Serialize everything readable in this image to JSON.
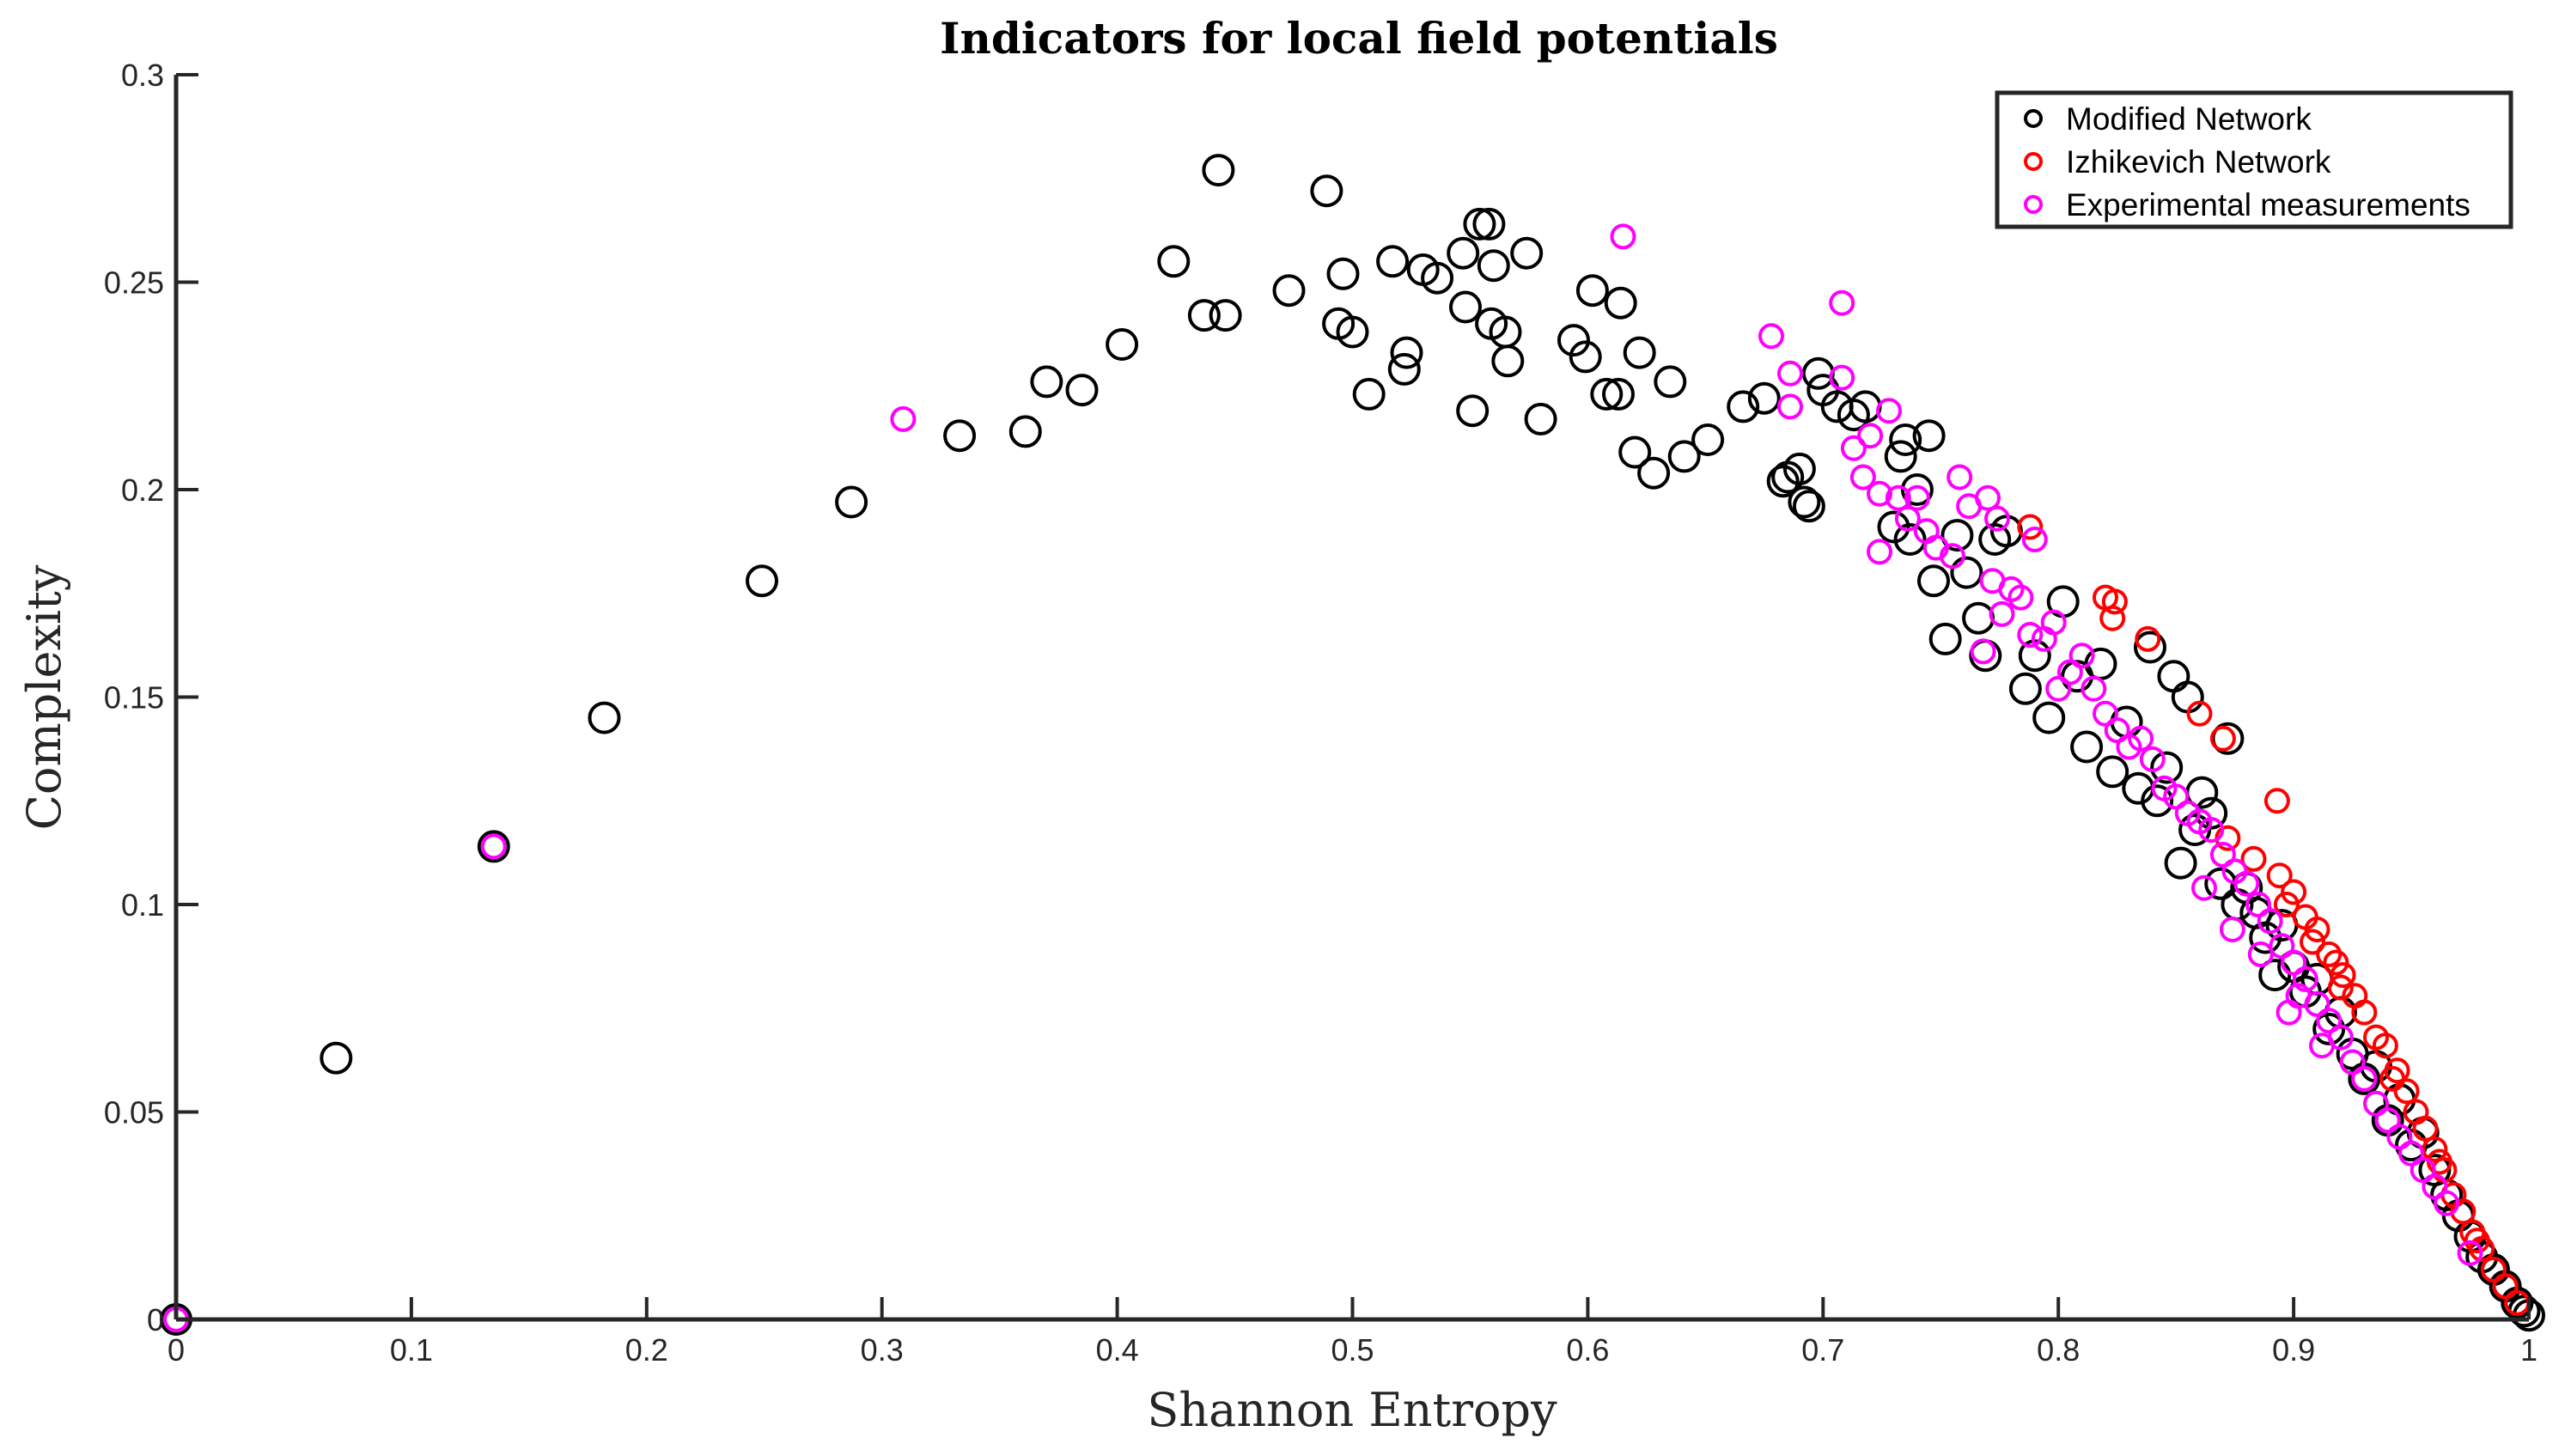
{
  "chart_data": {
    "type": "scatter",
    "title": "Indicators for local field potentials",
    "xlabel": "Shannon Entropy",
    "ylabel": "Complexity",
    "xlim": [
      0,
      1
    ],
    "ylim": [
      0,
      0.3
    ],
    "xticks": [
      "0",
      "0.1",
      "0.2",
      "0.3",
      "0.4",
      "0.5",
      "0.6",
      "0.7",
      "0.8",
      "0.9",
      "1"
    ],
    "yticks": [
      "0",
      "0.05",
      "0.1",
      "0.15",
      "0.2",
      "0.25",
      "0.3"
    ],
    "grid": false,
    "legend_position": "top-right",
    "series": [
      {
        "name": "Modified Network",
        "color": "#000000",
        "marker_size": "large",
        "points": [
          [
            0,
            0
          ],
          [
            0.068,
            0.063
          ],
          [
            0.135,
            0.114
          ],
          [
            0.182,
            0.145
          ],
          [
            0.249,
            0.178
          ],
          [
            0.287,
            0.197
          ],
          [
            0.333,
            0.213
          ],
          [
            0.361,
            0.214
          ],
          [
            0.37,
            0.226
          ],
          [
            0.385,
            0.224
          ],
          [
            0.402,
            0.235
          ],
          [
            0.424,
            0.255
          ],
          [
            0.437,
            0.242
          ],
          [
            0.443,
            0.277
          ],
          [
            0.446,
            0.242
          ],
          [
            0.473,
            0.248
          ],
          [
            0.489,
            0.272
          ],
          [
            0.494,
            0.24
          ],
          [
            0.496,
            0.252
          ],
          [
            0.5,
            0.238
          ],
          [
            0.507,
            0.223
          ],
          [
            0.517,
            0.255
          ],
          [
            0.522,
            0.229
          ],
          [
            0.523,
            0.233
          ],
          [
            0.53,
            0.253
          ],
          [
            0.536,
            0.251
          ],
          [
            0.547,
            0.257
          ],
          [
            0.548,
            0.244
          ],
          [
            0.551,
            0.219
          ],
          [
            0.554,
            0.264
          ],
          [
            0.558,
            0.264
          ],
          [
            0.559,
            0.24
          ],
          [
            0.56,
            0.254
          ],
          [
            0.565,
            0.238
          ],
          [
            0.566,
            0.231
          ],
          [
            0.574,
            0.257
          ],
          [
            0.58,
            0.217
          ],
          [
            0.594,
            0.236
          ],
          [
            0.599,
            0.232
          ],
          [
            0.602,
            0.248
          ],
          [
            0.608,
            0.223
          ],
          [
            0.613,
            0.223
          ],
          [
            0.614,
            0.245
          ],
          [
            0.62,
            0.209
          ],
          [
            0.622,
            0.233
          ],
          [
            0.628,
            0.204
          ],
          [
            0.635,
            0.226
          ],
          [
            0.641,
            0.208
          ],
          [
            0.651,
            0.212
          ],
          [
            0.666,
            0.22
          ],
          [
            0.675,
            0.222
          ],
          [
            0.683,
            0.202
          ],
          [
            0.685,
            0.203
          ],
          [
            0.69,
            0.205
          ],
          [
            0.692,
            0.197
          ],
          [
            0.694,
            0.196
          ],
          [
            0.698,
            0.228
          ],
          [
            0.7,
            0.224
          ],
          [
            0.706,
            0.22
          ],
          [
            0.713,
            0.218
          ],
          [
            0.718,
            0.22
          ],
          [
            0.73,
            0.191
          ],
          [
            0.733,
            0.208
          ],
          [
            0.735,
            0.212
          ],
          [
            0.737,
            0.188
          ],
          [
            0.74,
            0.2
          ],
          [
            0.745,
            0.213
          ],
          [
            0.747,
            0.178
          ],
          [
            0.752,
            0.164
          ],
          [
            0.757,
            0.189
          ],
          [
            0.761,
            0.18
          ],
          [
            0.766,
            0.169
          ],
          [
            0.769,
            0.16
          ],
          [
            0.773,
            0.188
          ],
          [
            0.778,
            0.19
          ],
          [
            0.786,
            0.152
          ],
          [
            0.79,
            0.16
          ],
          [
            0.796,
            0.145
          ],
          [
            0.802,
            0.173
          ],
          [
            0.808,
            0.155
          ],
          [
            0.812,
            0.138
          ],
          [
            0.818,
            0.158
          ],
          [
            0.823,
            0.132
          ],
          [
            0.829,
            0.144
          ],
          [
            0.834,
            0.128
          ],
          [
            0.839,
            0.162
          ],
          [
            0.842,
            0.125
          ],
          [
            0.846,
            0.133
          ],
          [
            0.849,
            0.155
          ],
          [
            0.852,
            0.11
          ],
          [
            0.855,
            0.15
          ],
          [
            0.858,
            0.118
          ],
          [
            0.861,
            0.127
          ],
          [
            0.865,
            0.122
          ],
          [
            0.869,
            0.105
          ],
          [
            0.872,
            0.14
          ],
          [
            0.876,
            0.1
          ],
          [
            0.88,
            0.104
          ],
          [
            0.884,
            0.098
          ],
          [
            0.888,
            0.092
          ],
          [
            0.892,
            0.083
          ],
          [
            0.895,
            0.095
          ],
          [
            0.9,
            0.085
          ],
          [
            0.905,
            0.079
          ],
          [
            0.91,
            0.082
          ],
          [
            0.915,
            0.07
          ],
          [
            0.92,
            0.074
          ],
          [
            0.925,
            0.064
          ],
          [
            0.93,
            0.058
          ],
          [
            0.935,
            0.061
          ],
          [
            0.94,
            0.048
          ],
          [
            0.945,
            0.053
          ],
          [
            0.95,
            0.042
          ],
          [
            0.955,
            0.045
          ],
          [
            0.96,
            0.036
          ],
          [
            0.965,
            0.03
          ],
          [
            0.97,
            0.025
          ],
          [
            0.975,
            0.02
          ],
          [
            0.98,
            0.015
          ],
          [
            0.985,
            0.012
          ],
          [
            0.99,
            0.008
          ],
          [
            0.995,
            0.004
          ],
          [
            0.998,
            0.002
          ],
          [
            1.0,
            0.001
          ]
        ]
      },
      {
        "name": "Izhikevich Network",
        "color": "#ff0000",
        "marker_size": "small",
        "points": [
          [
            0.788,
            0.191
          ],
          [
            0.82,
            0.174
          ],
          [
            0.824,
            0.173
          ],
          [
            0.823,
            0.169
          ],
          [
            0.838,
            0.164
          ],
          [
            0.86,
            0.146
          ],
          [
            0.87,
            0.14
          ],
          [
            0.893,
            0.125
          ],
          [
            0.872,
            0.116
          ],
          [
            0.883,
            0.111
          ],
          [
            0.894,
            0.107
          ],
          [
            0.9,
            0.103
          ],
          [
            0.905,
            0.097
          ],
          [
            0.91,
            0.094
          ],
          [
            0.918,
            0.086
          ],
          [
            0.921,
            0.083
          ],
          [
            0.926,
            0.078
          ],
          [
            0.93,
            0.074
          ],
          [
            0.935,
            0.068
          ],
          [
            0.939,
            0.066
          ],
          [
            0.944,
            0.06
          ],
          [
            0.948,
            0.055
          ],
          [
            0.952,
            0.05
          ],
          [
            0.956,
            0.046
          ],
          [
            0.96,
            0.041
          ],
          [
            0.964,
            0.036
          ],
          [
            0.968,
            0.03
          ],
          [
            0.972,
            0.026
          ],
          [
            0.976,
            0.021
          ],
          [
            0.98,
            0.017
          ],
          [
            0.985,
            0.012
          ],
          [
            0.99,
            0.008
          ],
          [
            0.995,
            0.004
          ],
          [
            0.92,
            0.08
          ],
          [
            0.915,
            0.088
          ],
          [
            0.908,
            0.091
          ],
          [
            0.897,
            0.1
          ],
          [
            0.942,
            0.058
          ],
          [
            0.962,
            0.038
          ],
          [
            0.978,
            0.019
          ]
        ]
      },
      {
        "name": "Experimental measurements",
        "color": "#ff00ff",
        "marker_size": "small",
        "points": [
          [
            0,
            0
          ],
          [
            0.135,
            0.114
          ],
          [
            0.309,
            0.217
          ],
          [
            0.615,
            0.261
          ],
          [
            0.678,
            0.237
          ],
          [
            0.686,
            0.228
          ],
          [
            0.686,
            0.22
          ],
          [
            0.708,
            0.245
          ],
          [
            0.708,
            0.227
          ],
          [
            0.713,
            0.21
          ],
          [
            0.717,
            0.203
          ],
          [
            0.72,
            0.213
          ],
          [
            0.724,
            0.199
          ],
          [
            0.724,
            0.185
          ],
          [
            0.728,
            0.219
          ],
          [
            0.732,
            0.198
          ],
          [
            0.736,
            0.193
          ],
          [
            0.74,
            0.198
          ],
          [
            0.744,
            0.19
          ],
          [
            0.748,
            0.186
          ],
          [
            0.755,
            0.184
          ],
          [
            0.758,
            0.203
          ],
          [
            0.762,
            0.196
          ],
          [
            0.768,
            0.161
          ],
          [
            0.77,
            0.198
          ],
          [
            0.772,
            0.178
          ],
          [
            0.774,
            0.193
          ],
          [
            0.776,
            0.17
          ],
          [
            0.78,
            0.176
          ],
          [
            0.784,
            0.174
          ],
          [
            0.788,
            0.165
          ],
          [
            0.79,
            0.188
          ],
          [
            0.794,
            0.164
          ],
          [
            0.798,
            0.168
          ],
          [
            0.8,
            0.152
          ],
          [
            0.805,
            0.156
          ],
          [
            0.81,
            0.16
          ],
          [
            0.815,
            0.152
          ],
          [
            0.82,
            0.146
          ],
          [
            0.825,
            0.142
          ],
          [
            0.83,
            0.138
          ],
          [
            0.835,
            0.14
          ],
          [
            0.84,
            0.135
          ],
          [
            0.845,
            0.128
          ],
          [
            0.85,
            0.126
          ],
          [
            0.855,
            0.122
          ],
          [
            0.86,
            0.12
          ],
          [
            0.865,
            0.118
          ],
          [
            0.87,
            0.112
          ],
          [
            0.875,
            0.108
          ],
          [
            0.88,
            0.105
          ],
          [
            0.885,
            0.1
          ],
          [
            0.89,
            0.096
          ],
          [
            0.895,
            0.09
          ],
          [
            0.9,
            0.086
          ],
          [
            0.905,
            0.082
          ],
          [
            0.91,
            0.076
          ],
          [
            0.915,
            0.072
          ],
          [
            0.92,
            0.068
          ],
          [
            0.925,
            0.062
          ],
          [
            0.93,
            0.058
          ],
          [
            0.935,
            0.052
          ],
          [
            0.94,
            0.048
          ],
          [
            0.945,
            0.044
          ],
          [
            0.95,
            0.04
          ],
          [
            0.955,
            0.036
          ],
          [
            0.96,
            0.032
          ],
          [
            0.965,
            0.028
          ],
          [
            0.975,
            0.016
          ],
          [
            0.902,
            0.078
          ],
          [
            0.898,
            0.074
          ],
          [
            0.912,
            0.066
          ],
          [
            0.886,
            0.088
          ],
          [
            0.874,
            0.094
          ],
          [
            0.862,
            0.104
          ]
        ]
      }
    ]
  }
}
